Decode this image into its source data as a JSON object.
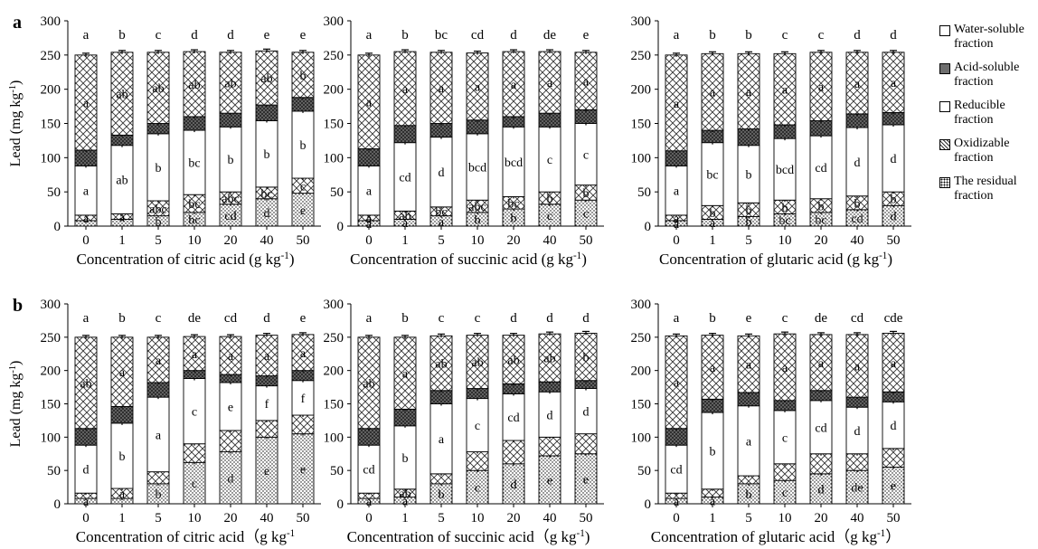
{
  "chart_data": [
    {
      "type": "bar",
      "stacked": true,
      "panel_label": "a",
      "xlabel": "Concentration of citric acid (g kg-1)",
      "ylabel": "Lead (mg kg-1)",
      "categories": [
        "0",
        "1",
        "5",
        "10",
        "20",
        "40",
        "50"
      ],
      "ylim": [
        0,
        300
      ],
      "yticks": [
        "0",
        "50",
        "100",
        "150",
        "200",
        "250",
        "300"
      ],
      "top_letters": [
        "a",
        "b",
        "c",
        "d",
        "d",
        "e",
        "e"
      ],
      "series": [
        {
          "name": "The residual fraction",
          "values": [
            8,
            10,
            15,
            20,
            32,
            40,
            48
          ],
          "letters": [
            "",
            "",
            "b",
            "bc",
            "cd",
            "d",
            "e"
          ]
        },
        {
          "name": "Oxidizable fraction",
          "values": [
            8,
            8,
            22,
            26,
            18,
            17,
            22
          ],
          "letters": [
            "a",
            "a",
            "abc",
            "bc",
            "abc",
            "bc",
            "c"
          ]
        },
        {
          "name": "Reducible fraction",
          "values": [
            72,
            100,
            98,
            94,
            95,
            97,
            98
          ],
          "letters": [
            "a",
            "ab",
            "b",
            "bc",
            "b",
            "b",
            "b"
          ]
        },
        {
          "name": "Acid-soluble fraction",
          "values": [
            23,
            15,
            15,
            20,
            20,
            23,
            20
          ],
          "letters": [
            "",
            "",
            "",
            "",
            "",
            "",
            ""
          ]
        },
        {
          "name": "Water-soluble fraction",
          "values": [
            139,
            121,
            104,
            95,
            89,
            79,
            66
          ],
          "letters": [
            "a",
            "ab",
            "ab",
            "ab",
            "ab",
            "ab",
            "b"
          ]
        }
      ]
    },
    {
      "type": "bar",
      "stacked": true,
      "panel_label": "",
      "xlabel": "Concentration of succinic acid (g kg-1)",
      "ylabel": "",
      "categories": [
        "0",
        "1",
        "5",
        "10",
        "20",
        "40",
        "50"
      ],
      "ylim": [
        0,
        300
      ],
      "yticks": [
        "0",
        "50",
        "100",
        "150",
        "200",
        "250",
        "300"
      ],
      "top_letters": [
        "a",
        "b",
        "bc",
        "cd",
        "d",
        "de",
        "e"
      ],
      "series": [
        {
          "name": "The residual fraction",
          "values": [
            8,
            10,
            15,
            20,
            25,
            32,
            38
          ],
          "letters": [
            "a",
            "a",
            "a",
            "b",
            "b",
            "c",
            "c"
          ]
        },
        {
          "name": "Oxidizable fraction",
          "values": [
            8,
            12,
            13,
            18,
            18,
            18,
            22
          ],
          "letters": [
            "a",
            "ab",
            "bc",
            "abc",
            "bc",
            "b",
            "b"
          ]
        },
        {
          "name": "Reducible fraction",
          "values": [
            72,
            100,
            102,
            97,
            102,
            95,
            90
          ],
          "letters": [
            "a",
            "cd",
            "d",
            "bcd",
            "bcd",
            "c",
            "c"
          ]
        },
        {
          "name": "Acid-soluble fraction",
          "values": [
            25,
            25,
            20,
            20,
            15,
            20,
            20
          ],
          "letters": [
            "",
            "",
            "",
            "",
            "",
            "",
            ""
          ]
        },
        {
          "name": "Water-soluble fraction",
          "values": [
            137,
            108,
            104,
            98,
            95,
            90,
            84
          ],
          "letters": [
            "a",
            "a",
            "a",
            "a",
            "a",
            "a",
            "a"
          ]
        }
      ]
    },
    {
      "type": "bar",
      "stacked": true,
      "panel_label": "",
      "xlabel": "Concentration of glutaric acid (g kg-1)",
      "ylabel": "",
      "categories": [
        "0",
        "1",
        "5",
        "10",
        "20",
        "40",
        "50"
      ],
      "ylim": [
        0,
        300
      ],
      "yticks": [
        "0",
        "50",
        "100",
        "150",
        "200",
        "250",
        "300"
      ],
      "top_letters": [
        "a",
        "b",
        "b",
        "c",
        "c",
        "d",
        "d"
      ],
      "series": [
        {
          "name": "The residual fraction",
          "values": [
            8,
            10,
            14,
            18,
            20,
            24,
            30
          ],
          "letters": [
            "a",
            "a",
            "b",
            "bc",
            "bc",
            "cd",
            "d"
          ]
        },
        {
          "name": "Oxidizable fraction",
          "values": [
            8,
            20,
            20,
            20,
            20,
            20,
            20
          ],
          "letters": [
            "a",
            "b",
            "b",
            "b",
            "b",
            "b",
            "b"
          ]
        },
        {
          "name": "Reducible fraction",
          "values": [
            72,
            92,
            84,
            90,
            92,
            100,
            98
          ],
          "letters": [
            "a",
            "bc",
            "b",
            "bcd",
            "cd",
            "d",
            "d"
          ]
        },
        {
          "name": "Acid-soluble fraction",
          "values": [
            22,
            18,
            24,
            20,
            22,
            20,
            18
          ],
          "letters": [
            "",
            "",
            "",
            "",
            "",
            "",
            ""
          ]
        },
        {
          "name": "Water-soluble fraction",
          "values": [
            140,
            112,
            110,
            104,
            100,
            90,
            88
          ],
          "letters": [
            "a",
            "a",
            "a",
            "a",
            "a",
            "a",
            "a"
          ]
        }
      ]
    },
    {
      "type": "bar",
      "stacked": true,
      "panel_label": "b",
      "xlabel": "Concentration of citric acid（g kg-1",
      "ylabel": "Lead (mg kg-1)",
      "categories": [
        "0",
        "1",
        "5",
        "10",
        "20",
        "40",
        "50"
      ],
      "ylim": [
        0,
        300
      ],
      "yticks": [
        "0",
        "50",
        "100",
        "150",
        "200",
        "250",
        "300"
      ],
      "top_letters": [
        "a",
        "b",
        "c",
        "de",
        "cd",
        "d",
        "e"
      ],
      "series": [
        {
          "name": "The residual fraction",
          "values": [
            8,
            8,
            30,
            62,
            78,
            100,
            105
          ],
          "letters": [
            "a",
            "",
            "b",
            "c",
            "d",
            "e",
            "e"
          ]
        },
        {
          "name": "Oxidizable fraction",
          "values": [
            8,
            15,
            18,
            28,
            32,
            25,
            28
          ],
          "letters": [
            "",
            "a",
            "",
            "",
            "",
            "",
            ""
          ]
        },
        {
          "name": "Reducible fraction",
          "values": [
            72,
            98,
            112,
            98,
            72,
            52,
            52
          ],
          "letters": [
            "d",
            "b",
            "a",
            "c",
            "e",
            "f",
            "f"
          ]
        },
        {
          "name": "Acid-soluble fraction",
          "values": [
            25,
            25,
            22,
            12,
            12,
            15,
            15
          ],
          "letters": [
            "",
            "",
            "",
            "",
            "",
            "",
            ""
          ]
        },
        {
          "name": "Water-soluble fraction",
          "values": [
            137,
            104,
            68,
            51,
            57,
            61,
            54
          ],
          "letters": [
            "ab",
            "a",
            "a",
            "a",
            "a",
            "a",
            "a"
          ]
        }
      ]
    },
    {
      "type": "bar",
      "stacked": true,
      "panel_label": "",
      "xlabel": "Concentration of succinic acid（g kg-1)",
      "ylabel": "",
      "categories": [
        "0",
        "1",
        "5",
        "10",
        "20",
        "40",
        "50"
      ],
      "ylim": [
        0,
        300
      ],
      "yticks": [
        "0",
        "50",
        "100",
        "150",
        "200",
        "250",
        "300"
      ],
      "top_letters": [
        "a",
        "b",
        "c",
        "c",
        "d",
        "d",
        "d"
      ],
      "series": [
        {
          "name": "The residual fraction",
          "values": [
            8,
            10,
            30,
            50,
            60,
            72,
            75
          ],
          "letters": [
            "a",
            "a",
            "b",
            "c",
            "d",
            "e",
            "e"
          ]
        },
        {
          "name": "Oxidizable fraction",
          "values": [
            8,
            12,
            15,
            28,
            35,
            28,
            30
          ],
          "letters": [
            "",
            "ab",
            "",
            "",
            "",
            "",
            ""
          ]
        },
        {
          "name": "Reducible fraction",
          "values": [
            72,
            95,
            105,
            80,
            70,
            68,
            68
          ],
          "letters": [
            "cd",
            "b",
            "a",
            "c",
            "cd",
            "d",
            "d"
          ]
        },
        {
          "name": "Acid-soluble fraction",
          "values": [
            25,
            25,
            20,
            15,
            15,
            15,
            12
          ],
          "letters": [
            "",
            "",
            "",
            "",
            "",
            "",
            ""
          ]
        },
        {
          "name": "Water-soluble fraction",
          "values": [
            137,
            108,
            82,
            80,
            73,
            72,
            71
          ],
          "letters": [
            "ab",
            "a",
            "ab",
            "ab",
            "ab",
            "ab",
            "b"
          ]
        }
      ]
    },
    {
      "type": "bar",
      "stacked": true,
      "panel_label": "",
      "xlabel": "Concentration of glutaric acid（g kg-1）",
      "ylabel": "",
      "categories": [
        "0",
        "1",
        "5",
        "10",
        "20",
        "40",
        "50"
      ],
      "ylim": [
        0,
        300
      ],
      "yticks": [
        "0",
        "50",
        "100",
        "150",
        "200",
        "250",
        "300"
      ],
      "top_letters": [
        "a",
        "b",
        "e",
        "c",
        "de",
        "cd",
        "cde"
      ],
      "series": [
        {
          "name": "The residual fraction",
          "values": [
            8,
            10,
            30,
            35,
            45,
            50,
            55
          ],
          "letters": [
            "a",
            "a",
            "b",
            "c",
            "d",
            "de",
            "e"
          ]
        },
        {
          "name": "Oxidizable fraction",
          "values": [
            8,
            12,
            12,
            25,
            30,
            25,
            28
          ],
          "letters": [
            "",
            "",
            "",
            "",
            "",
            "",
            ""
          ]
        },
        {
          "name": "Reducible fraction",
          "values": [
            72,
            115,
            105,
            80,
            80,
            70,
            70
          ],
          "letters": [
            "cd",
            "b",
            "a",
            "c",
            "cd",
            "d",
            "d"
          ]
        },
        {
          "name": "Acid-soluble fraction",
          "values": [
            25,
            20,
            20,
            15,
            15,
            15,
            15
          ],
          "letters": [
            "",
            "",
            "",
            "",
            "",
            "",
            ""
          ]
        },
        {
          "name": "Water-soluble fraction",
          "values": [
            139,
            96,
            85,
            100,
            84,
            94,
            88
          ],
          "letters": [
            "a",
            "a",
            "a",
            "a",
            "a",
            "a",
            "a"
          ]
        }
      ]
    }
  ],
  "legend": [
    {
      "label": "Water-soluble fraction",
      "fill": "white"
    },
    {
      "label": "Acid-soluble fraction",
      "fill": "dark"
    },
    {
      "label": "Reducible fraction",
      "fill": "white"
    },
    {
      "label": "Oxidizable fraction",
      "fill": "cross"
    },
    {
      "label": "The residual fraction",
      "fill": "dots"
    }
  ]
}
